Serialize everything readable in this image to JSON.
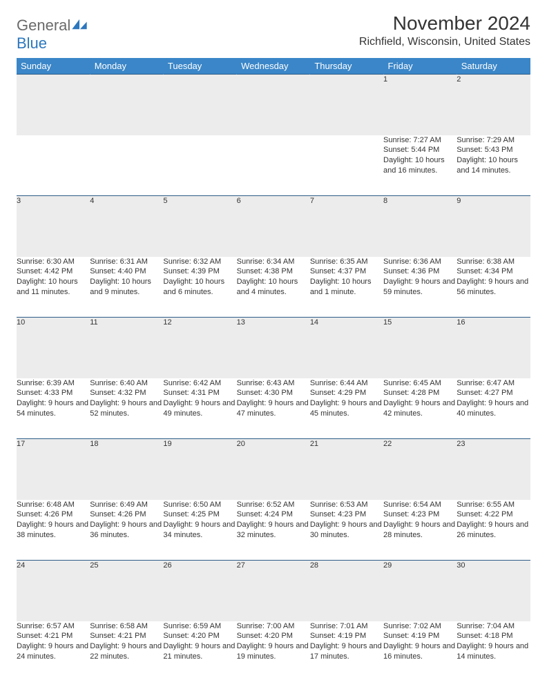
{
  "brand": {
    "part1": "General",
    "part2": "Blue"
  },
  "title": "November 2024",
  "location": "Richfield, Wisconsin, United States",
  "colors": {
    "header_bg": "#3a86c8",
    "header_text": "#ffffff",
    "daynum_bg": "#ececec",
    "rule": "#2c5b86",
    "text": "#333333",
    "brand_gray": "#6a6a6a",
    "brand_blue": "#2c77bd"
  },
  "weekdays": [
    "Sunday",
    "Monday",
    "Tuesday",
    "Wednesday",
    "Thursday",
    "Friday",
    "Saturday"
  ],
  "weeks": [
    [
      {
        "n": "",
        "rise": "",
        "set": "",
        "day": ""
      },
      {
        "n": "",
        "rise": "",
        "set": "",
        "day": ""
      },
      {
        "n": "",
        "rise": "",
        "set": "",
        "day": ""
      },
      {
        "n": "",
        "rise": "",
        "set": "",
        "day": ""
      },
      {
        "n": "",
        "rise": "",
        "set": "",
        "day": ""
      },
      {
        "n": "1",
        "rise": "Sunrise: 7:27 AM",
        "set": "Sunset: 5:44 PM",
        "day": "Daylight: 10 hours and 16 minutes."
      },
      {
        "n": "2",
        "rise": "Sunrise: 7:29 AM",
        "set": "Sunset: 5:43 PM",
        "day": "Daylight: 10 hours and 14 minutes."
      }
    ],
    [
      {
        "n": "3",
        "rise": "Sunrise: 6:30 AM",
        "set": "Sunset: 4:42 PM",
        "day": "Daylight: 10 hours and 11 minutes."
      },
      {
        "n": "4",
        "rise": "Sunrise: 6:31 AM",
        "set": "Sunset: 4:40 PM",
        "day": "Daylight: 10 hours and 9 minutes."
      },
      {
        "n": "5",
        "rise": "Sunrise: 6:32 AM",
        "set": "Sunset: 4:39 PM",
        "day": "Daylight: 10 hours and 6 minutes."
      },
      {
        "n": "6",
        "rise": "Sunrise: 6:34 AM",
        "set": "Sunset: 4:38 PM",
        "day": "Daylight: 10 hours and 4 minutes."
      },
      {
        "n": "7",
        "rise": "Sunrise: 6:35 AM",
        "set": "Sunset: 4:37 PM",
        "day": "Daylight: 10 hours and 1 minute."
      },
      {
        "n": "8",
        "rise": "Sunrise: 6:36 AM",
        "set": "Sunset: 4:36 PM",
        "day": "Daylight: 9 hours and 59 minutes."
      },
      {
        "n": "9",
        "rise": "Sunrise: 6:38 AM",
        "set": "Sunset: 4:34 PM",
        "day": "Daylight: 9 hours and 56 minutes."
      }
    ],
    [
      {
        "n": "10",
        "rise": "Sunrise: 6:39 AM",
        "set": "Sunset: 4:33 PM",
        "day": "Daylight: 9 hours and 54 minutes."
      },
      {
        "n": "11",
        "rise": "Sunrise: 6:40 AM",
        "set": "Sunset: 4:32 PM",
        "day": "Daylight: 9 hours and 52 minutes."
      },
      {
        "n": "12",
        "rise": "Sunrise: 6:42 AM",
        "set": "Sunset: 4:31 PM",
        "day": "Daylight: 9 hours and 49 minutes."
      },
      {
        "n": "13",
        "rise": "Sunrise: 6:43 AM",
        "set": "Sunset: 4:30 PM",
        "day": "Daylight: 9 hours and 47 minutes."
      },
      {
        "n": "14",
        "rise": "Sunrise: 6:44 AM",
        "set": "Sunset: 4:29 PM",
        "day": "Daylight: 9 hours and 45 minutes."
      },
      {
        "n": "15",
        "rise": "Sunrise: 6:45 AM",
        "set": "Sunset: 4:28 PM",
        "day": "Daylight: 9 hours and 42 minutes."
      },
      {
        "n": "16",
        "rise": "Sunrise: 6:47 AM",
        "set": "Sunset: 4:27 PM",
        "day": "Daylight: 9 hours and 40 minutes."
      }
    ],
    [
      {
        "n": "17",
        "rise": "Sunrise: 6:48 AM",
        "set": "Sunset: 4:26 PM",
        "day": "Daylight: 9 hours and 38 minutes."
      },
      {
        "n": "18",
        "rise": "Sunrise: 6:49 AM",
        "set": "Sunset: 4:26 PM",
        "day": "Daylight: 9 hours and 36 minutes."
      },
      {
        "n": "19",
        "rise": "Sunrise: 6:50 AM",
        "set": "Sunset: 4:25 PM",
        "day": "Daylight: 9 hours and 34 minutes."
      },
      {
        "n": "20",
        "rise": "Sunrise: 6:52 AM",
        "set": "Sunset: 4:24 PM",
        "day": "Daylight: 9 hours and 32 minutes."
      },
      {
        "n": "21",
        "rise": "Sunrise: 6:53 AM",
        "set": "Sunset: 4:23 PM",
        "day": "Daylight: 9 hours and 30 minutes."
      },
      {
        "n": "22",
        "rise": "Sunrise: 6:54 AM",
        "set": "Sunset: 4:23 PM",
        "day": "Daylight: 9 hours and 28 minutes."
      },
      {
        "n": "23",
        "rise": "Sunrise: 6:55 AM",
        "set": "Sunset: 4:22 PM",
        "day": "Daylight: 9 hours and 26 minutes."
      }
    ],
    [
      {
        "n": "24",
        "rise": "Sunrise: 6:57 AM",
        "set": "Sunset: 4:21 PM",
        "day": "Daylight: 9 hours and 24 minutes."
      },
      {
        "n": "25",
        "rise": "Sunrise: 6:58 AM",
        "set": "Sunset: 4:21 PM",
        "day": "Daylight: 9 hours and 22 minutes."
      },
      {
        "n": "26",
        "rise": "Sunrise: 6:59 AM",
        "set": "Sunset: 4:20 PM",
        "day": "Daylight: 9 hours and 21 minutes."
      },
      {
        "n": "27",
        "rise": "Sunrise: 7:00 AM",
        "set": "Sunset: 4:20 PM",
        "day": "Daylight: 9 hours and 19 minutes."
      },
      {
        "n": "28",
        "rise": "Sunrise: 7:01 AM",
        "set": "Sunset: 4:19 PM",
        "day": "Daylight: 9 hours and 17 minutes."
      },
      {
        "n": "29",
        "rise": "Sunrise: 7:02 AM",
        "set": "Sunset: 4:19 PM",
        "day": "Daylight: 9 hours and 16 minutes."
      },
      {
        "n": "30",
        "rise": "Sunrise: 7:04 AM",
        "set": "Sunset: 4:18 PM",
        "day": "Daylight: 9 hours and 14 minutes."
      }
    ]
  ]
}
